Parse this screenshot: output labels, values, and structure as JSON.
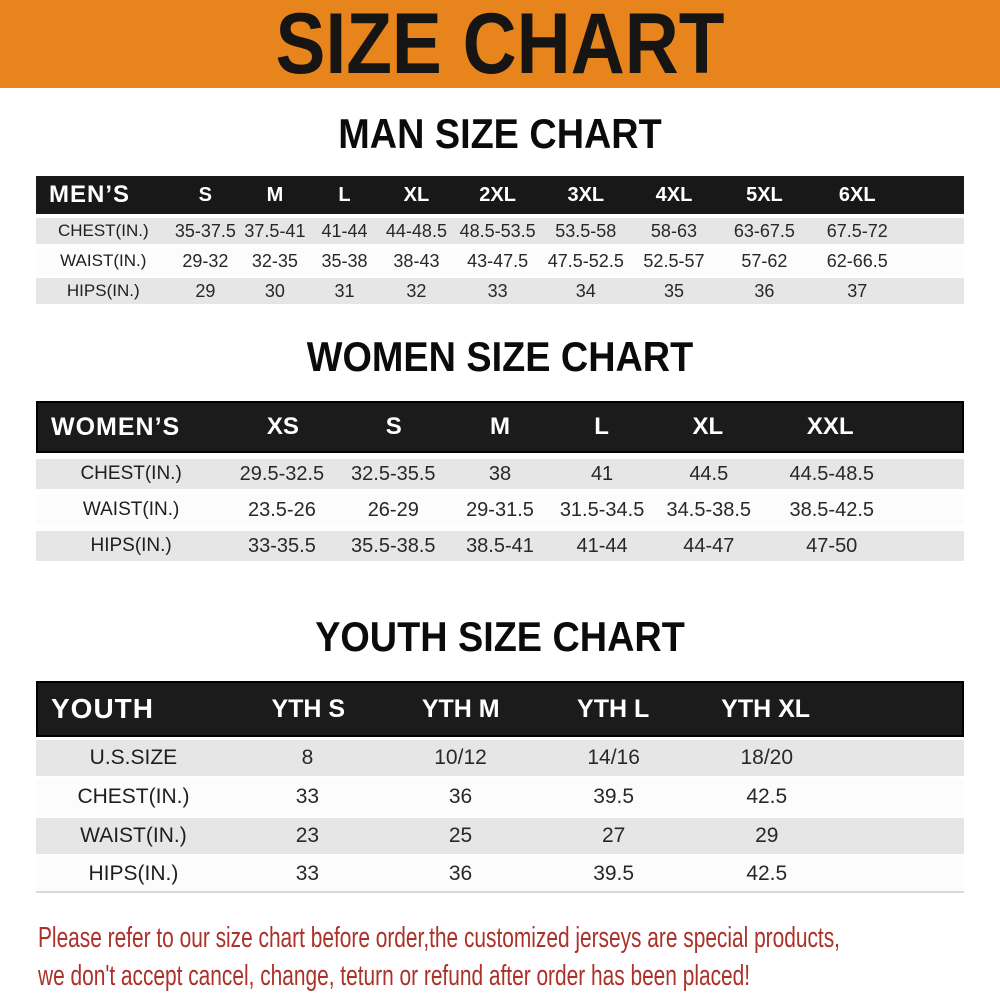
{
  "banner": {
    "title": "SIZE CHART",
    "bg_color": "#E8841C",
    "text_color": "#171513"
  },
  "sections": [
    {
      "heading": "MAN SIZE CHART",
      "table": {
        "header": [
          "MEN’S",
          "S",
          "M",
          "L",
          "XL",
          "2XL",
          "3XL",
          "4XL",
          "5XL",
          "6XL"
        ],
        "rows": [
          {
            "label": "CHEST(IN.)",
            "values": [
              "35-37.5",
              "37.5-41",
              "41-44",
              "44-48.5",
              "48.5-53.5",
              "53.5-58",
              "58-63",
              "63-67.5",
              "67.5-72"
            ]
          },
          {
            "label": "WAIST(IN.)",
            "values": [
              "29-32",
              "32-35",
              "35-38",
              "38-43",
              "43-47.5",
              "47.5-52.5",
              "52.5-57",
              "57-62",
              "62-66.5"
            ]
          },
          {
            "label": "HIPS(IN.)",
            "values": [
              "29",
              "30",
              "31",
              "32",
              "33",
              "34",
              "35",
              "36",
              "37"
            ]
          }
        ]
      }
    },
    {
      "heading": "WOMEN SIZE CHART",
      "table": {
        "header": [
          "WOMEN’S",
          "XS",
          "S",
          "M",
          "L",
          "XL",
          "XXL"
        ],
        "rows": [
          {
            "label": "CHEST(IN.)",
            "values": [
              "29.5-32.5",
              "32.5-35.5",
              "38",
              "41",
              "44.5",
              "44.5-48.5"
            ]
          },
          {
            "label": "WAIST(IN.)",
            "values": [
              "23.5-26",
              "26-29",
              "29-31.5",
              "31.5-34.5",
              "34.5-38.5",
              "38.5-42.5"
            ]
          },
          {
            "label": "HIPS(IN.)",
            "values": [
              "33-35.5",
              "35.5-38.5",
              "38.5-41",
              "41-44",
              "44-47",
              "47-50"
            ]
          }
        ]
      }
    },
    {
      "heading": "YOUTH SIZE CHART",
      "table": {
        "header": [
          "YOUTH",
          "YTH S",
          "YTH M",
          "YTH L",
          "YTH XL"
        ],
        "rows": [
          {
            "label": "U.S.SIZE",
            "values": [
              "8",
              "10/12",
              "14/16",
              "18/20"
            ]
          },
          {
            "label": "CHEST(IN.)",
            "values": [
              "33",
              "36",
              "39.5",
              "42.5"
            ]
          },
          {
            "label": "WAIST(IN.)",
            "values": [
              "23",
              "25",
              "27",
              "29"
            ]
          },
          {
            "label": "HIPS(IN.)",
            "values": [
              "33",
              "36",
              "39.5",
              "42.5"
            ]
          }
        ]
      }
    }
  ],
  "disclaimer": {
    "line1": "Please refer to our size chart before order,the customized jerseys are special products,",
    "line2": "we don't accept cancel, change, teturn or refund after order has been placed!",
    "color": "#AC3128"
  },
  "colors": {
    "banner-orange": "#E8841C",
    "disclaimer-red": "#AC3128",
    "row-gray": "#E6E6E6",
    "row-white": "#FCFCFC",
    "header-black": "#181818"
  }
}
